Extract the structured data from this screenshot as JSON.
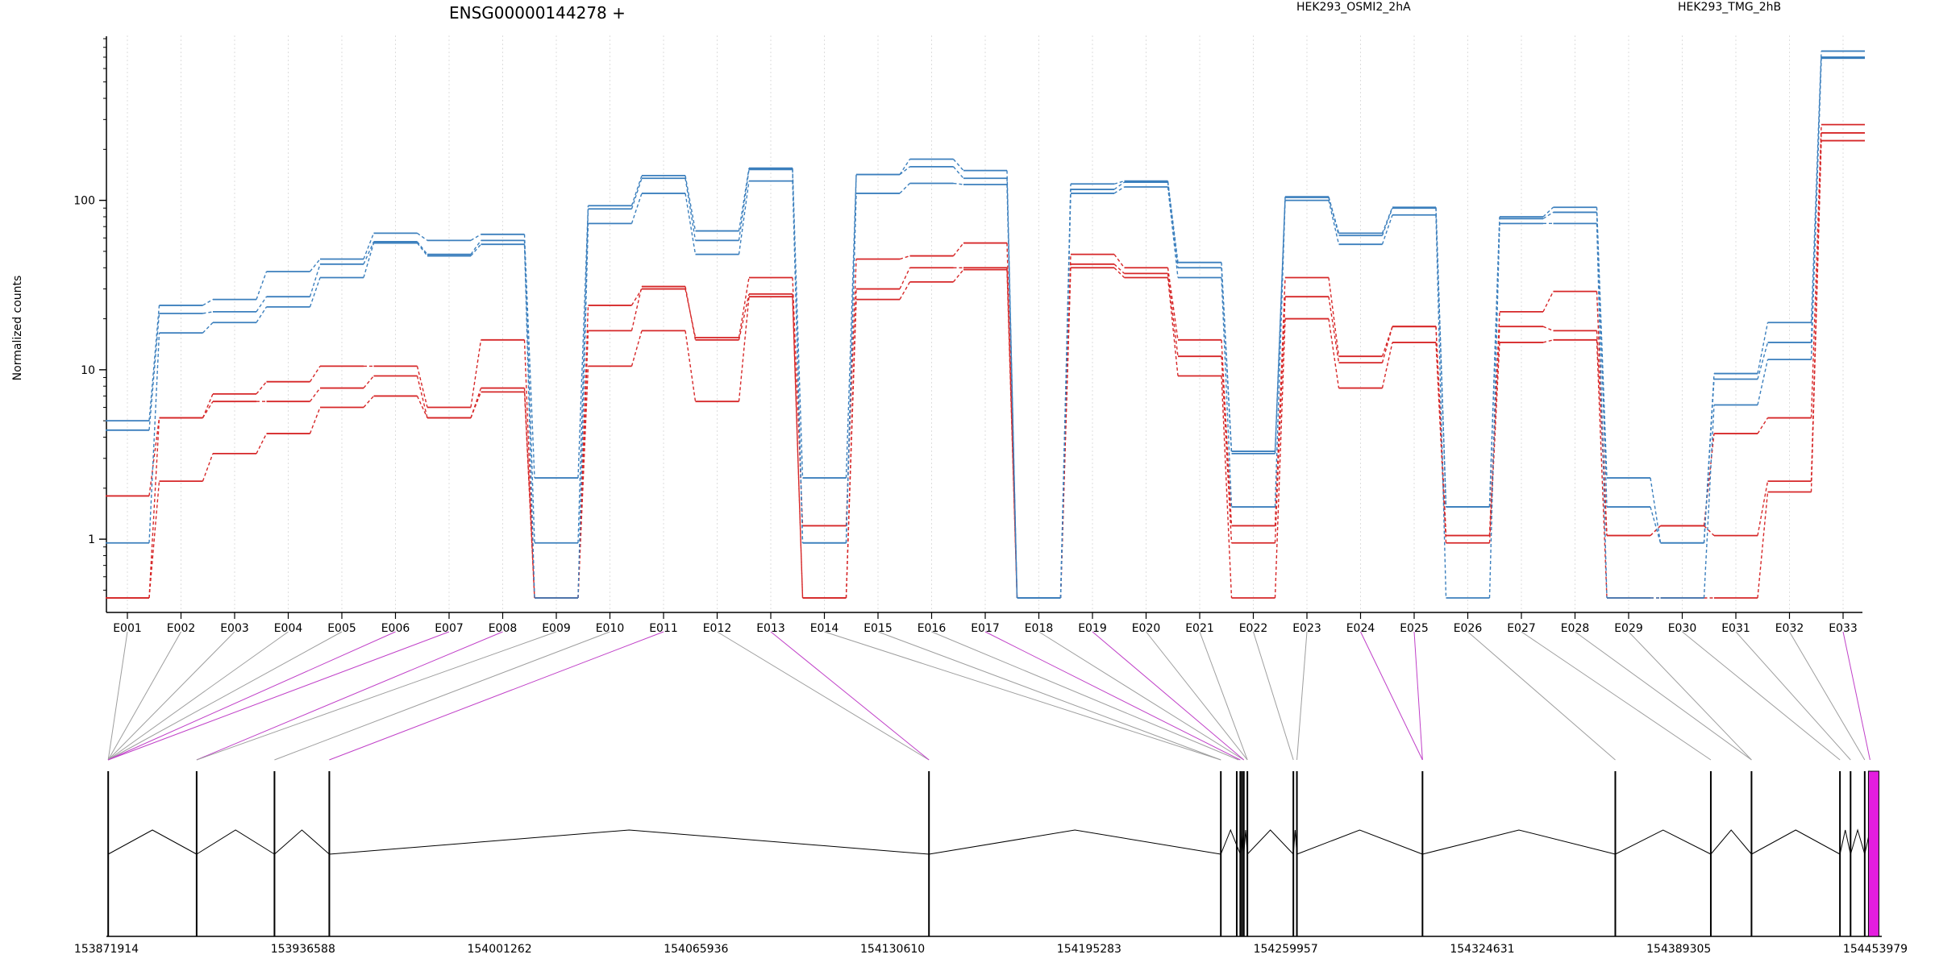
{
  "chart_data": {
    "type": "line",
    "title": "ENSG00000144278 +",
    "ylabel": "Normalized counts",
    "y_scale": "log",
    "ylim": [
      0.45,
      900
    ],
    "y_ticks": [
      1,
      10,
      100
    ],
    "y_tick_labels": [
      "1",
      "10",
      "100"
    ],
    "grid": "vertical dotted lines at each exon",
    "legend": "top-right",
    "colors": {
      "groupA": "#d62728",
      "groupB": "#3b7fbd",
      "highlight": "#e41ddf",
      "connector": "#9e9e9e",
      "gene_model": "#000000"
    },
    "categories": [
      "E001",
      "E002",
      "E003",
      "E004",
      "E005",
      "E006",
      "E007",
      "E008",
      "E009",
      "E010",
      "E011",
      "E012",
      "E013",
      "E014",
      "E015",
      "E016",
      "E017",
      "E018",
      "E019",
      "E020",
      "E021",
      "E022",
      "E023",
      "E024",
      "E025",
      "E026",
      "E027",
      "E028",
      "E029",
      "E030",
      "E031",
      "E032",
      "E033"
    ],
    "highlighted_exons": [
      "E006",
      "E007",
      "E008",
      "E011",
      "E013",
      "E017",
      "E019",
      "E024",
      "E025",
      "E033"
    ],
    "series": [
      {
        "name": "HEK293_OSMI2_2hA",
        "group": "A",
        "values": [
          1.8,
          5.2,
          7.2,
          8.5,
          10.5,
          10.5,
          6.0,
          15.0,
          0.45,
          24,
          30,
          15.5,
          35,
          1.2,
          45,
          47,
          56,
          0.45,
          48,
          40,
          15,
          1.2,
          35,
          12,
          18,
          1.05,
          22,
          29,
          1.05,
          1.2,
          4.2,
          5.2,
          280
        ]
      },
      {
        "group": "A",
        "values": [
          0.45,
          5.2,
          6.5,
          6.5,
          7.8,
          9.2,
          5.2,
          7.8,
          0.45,
          17,
          31,
          15.0,
          28,
          0.45,
          30,
          40,
          40,
          0.45,
          42,
          37,
          12,
          0.95,
          27,
          11,
          18,
          1.05,
          18,
          17,
          1.05,
          1.2,
          1.05,
          2.2,
          250
        ]
      },
      {
        "group": "A",
        "values": [
          0.45,
          2.2,
          3.2,
          4.2,
          6.0,
          7.0,
          5.2,
          7.4,
          0.45,
          10.5,
          17,
          6.5,
          27,
          0.45,
          26,
          33,
          39,
          0.45,
          40,
          35,
          9.2,
          0.45,
          20,
          7.8,
          14.5,
          0.95,
          14.5,
          15,
          0.45,
          0.45,
          0.45,
          1.9,
          225
        ]
      },
      {
        "name": "HEK293_TMG_2hB",
        "group": "B",
        "values": [
          5.0,
          24,
          26,
          38,
          45,
          64,
          58,
          63,
          2.3,
          93,
          140,
          66,
          155,
          2.3,
          142,
          175,
          150,
          0.45,
          125,
          130,
          43,
          3.3,
          105,
          64,
          91,
          1.55,
          80,
          91,
          2.3,
          0.95,
          9.5,
          19,
          760
        ]
      },
      {
        "group": "B",
        "values": [
          4.4,
          21.5,
          22,
          27,
          42,
          57,
          48,
          58,
          0.95,
          89,
          135,
          58,
          152,
          0.95,
          142,
          158,
          135,
          0.45,
          116,
          128,
          40,
          3.2,
          104,
          62,
          90,
          1.55,
          78,
          85,
          1.55,
          0.95,
          8.8,
          14.5,
          700
        ]
      },
      {
        "group": "B",
        "values": [
          0.95,
          16.5,
          19,
          23.5,
          35,
          56,
          47,
          55,
          0.45,
          73,
          110,
          48,
          130,
          0.95,
          110,
          126,
          124,
          0.45,
          110,
          120,
          35,
          1.55,
          100,
          55,
          82,
          0.45,
          73,
          73,
          0.45,
          0.45,
          6.2,
          11.5,
          690
        ]
      }
    ],
    "genomic_axis": {
      "tick_labels": [
        "153871914",
        "153936588",
        "154001262",
        "154065936",
        "154130610",
        "154195283",
        "154259957",
        "154324631",
        "154389305",
        "154453979"
      ],
      "exon_labels": [
        "153871914",
        "153936588",
        "154001262",
        "154065936",
        "154130610",
        "154195283",
        "154259957",
        "154324631",
        "154389305",
        "154453979"
      ]
    }
  }
}
